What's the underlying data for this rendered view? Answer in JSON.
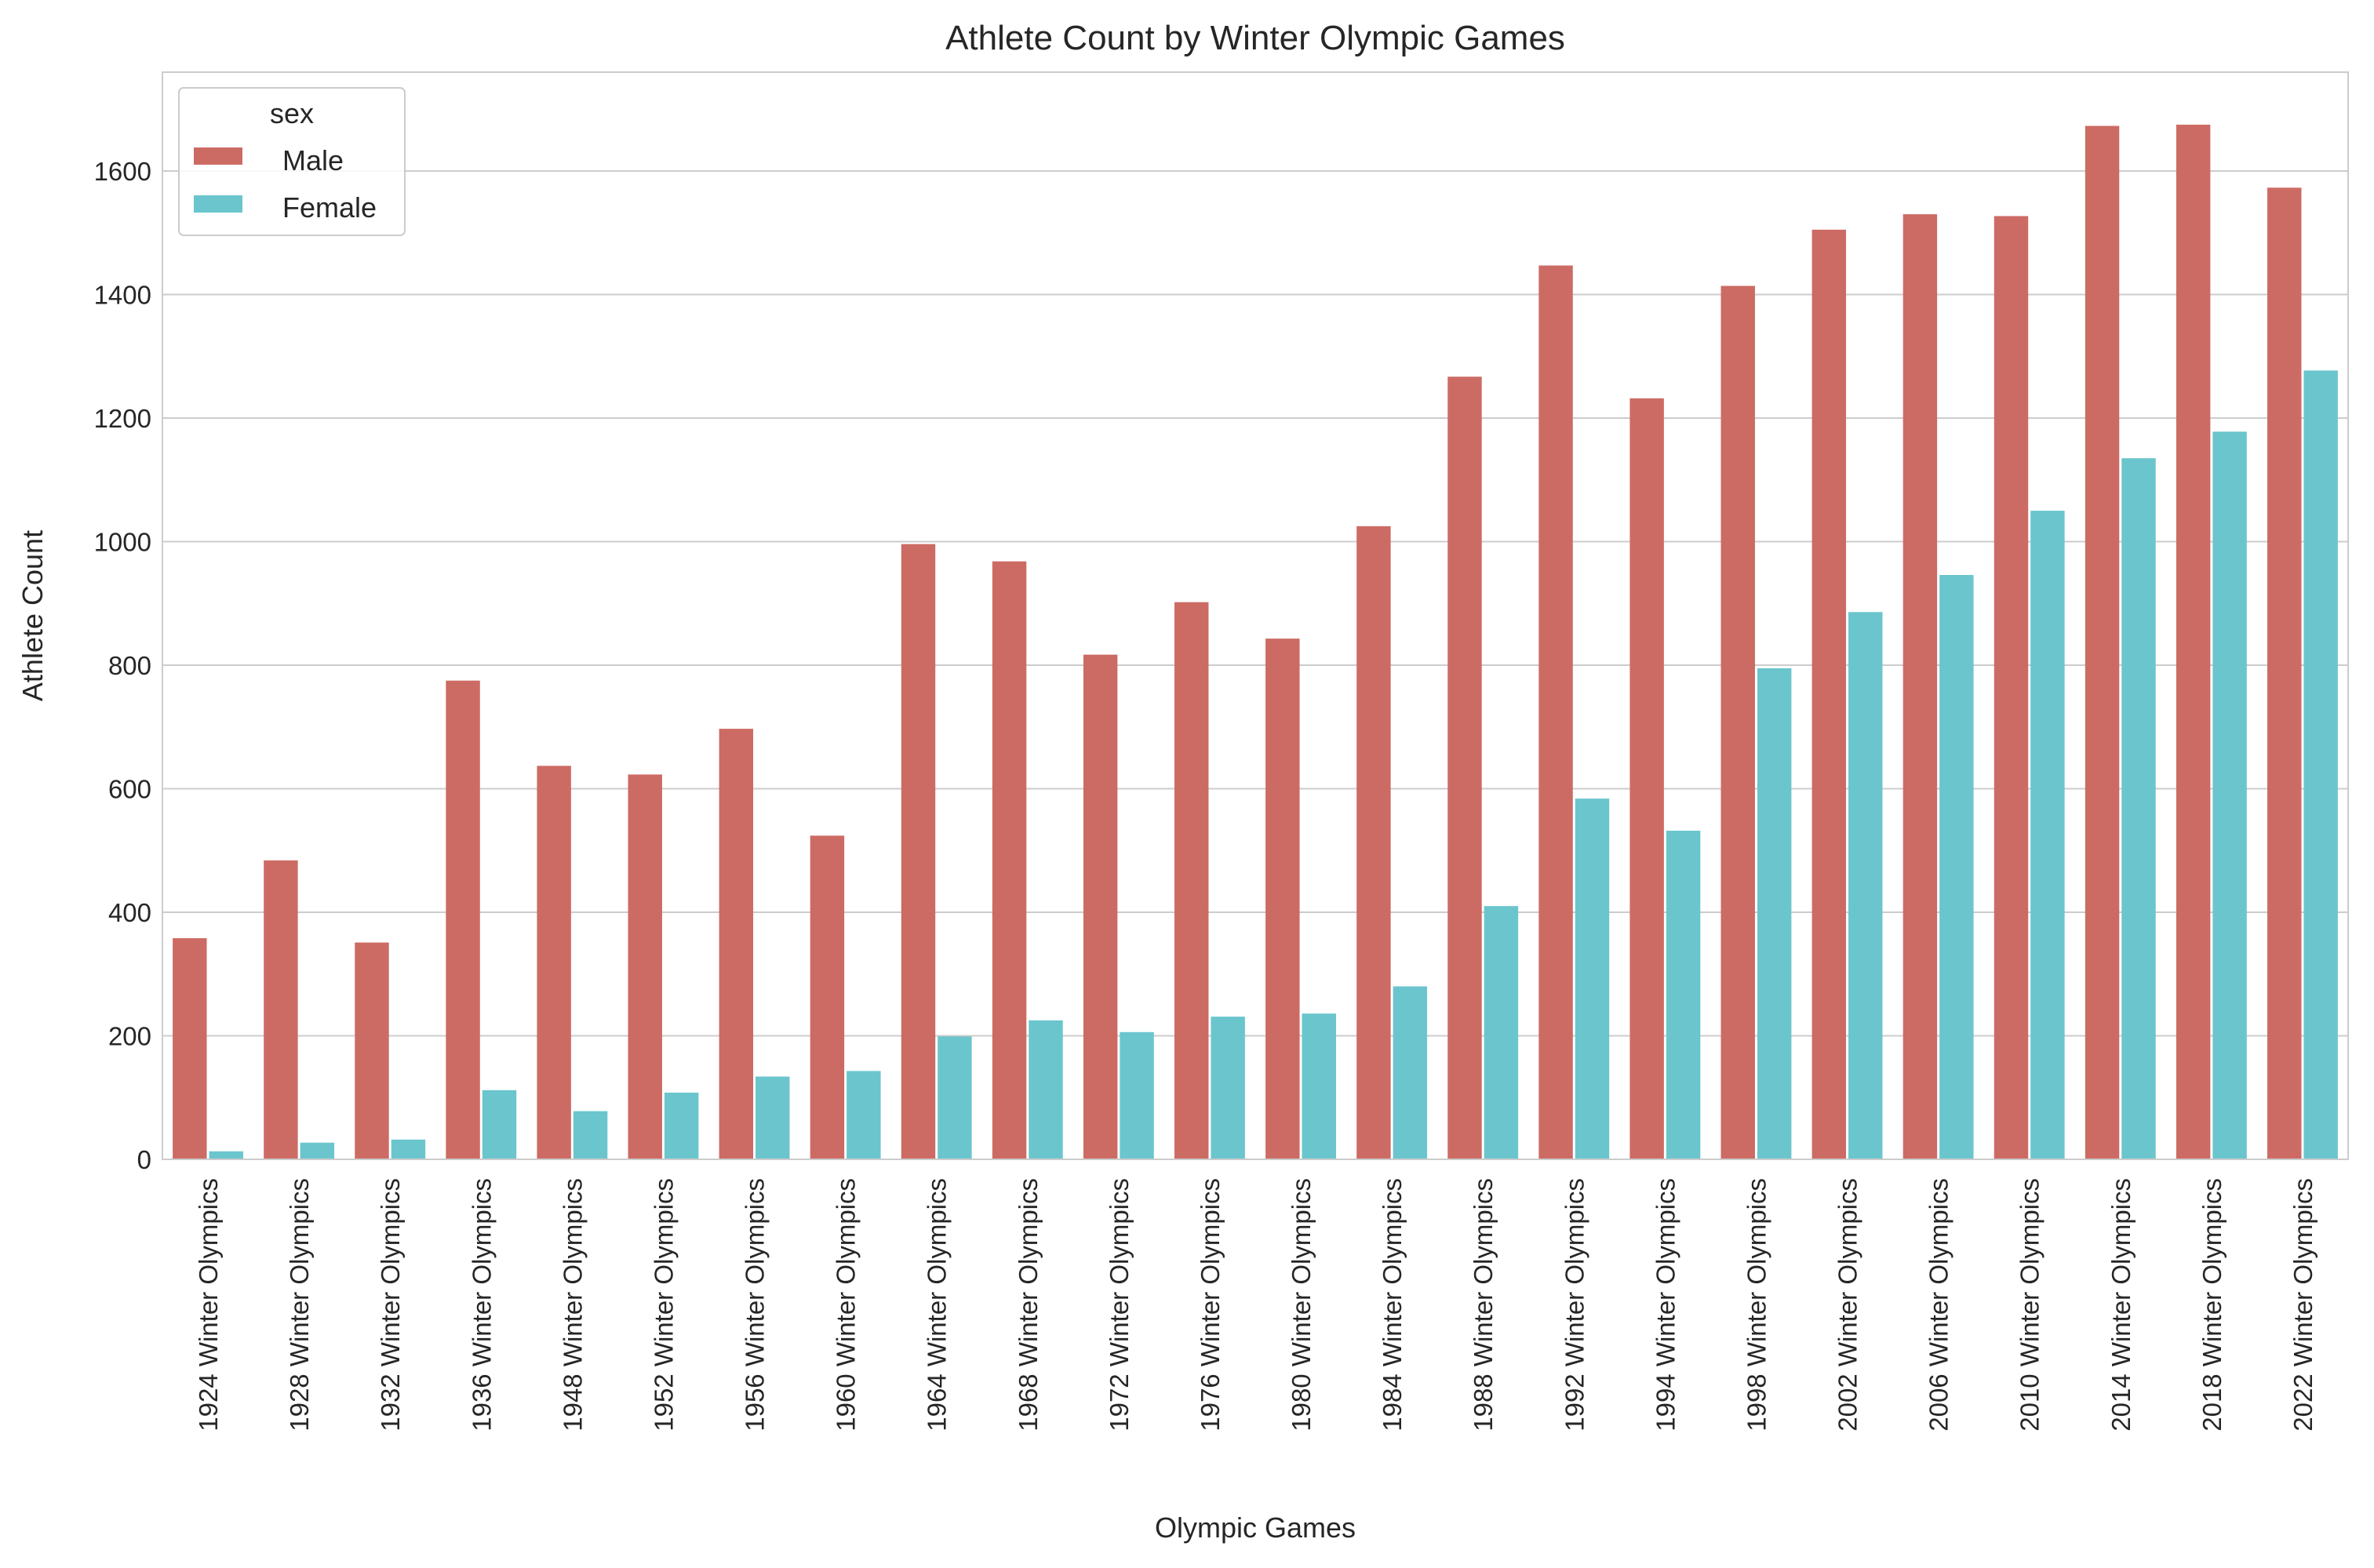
{
  "chart_data": {
    "type": "bar",
    "title": "Athlete Count by Winter Olympic Games",
    "xlabel": "Olympic Games",
    "ylabel": "Athlete Count",
    "ylim": [
      0,
      1760
    ],
    "yticks": [
      0,
      200,
      400,
      600,
      800,
      1000,
      1200,
      1400,
      1600
    ],
    "grid": "horizontal",
    "legend": {
      "title": "sex",
      "placement": "top-left"
    },
    "categories": [
      "1924 Winter Olympics",
      "1928 Winter Olympics",
      "1932 Winter Olympics",
      "1936 Winter Olympics",
      "1948 Winter Olympics",
      "1952 Winter Olympics",
      "1956 Winter Olympics",
      "1960 Winter Olympics",
      "1964 Winter Olympics",
      "1968 Winter Olympics",
      "1972 Winter Olympics",
      "1976 Winter Olympics",
      "1980 Winter Olympics",
      "1984 Winter Olympics",
      "1988 Winter Olympics",
      "1992 Winter Olympics",
      "1994 Winter Olympics",
      "1998 Winter Olympics",
      "2002 Winter Olympics",
      "2006 Winter Olympics",
      "2010 Winter Olympics",
      "2014 Winter Olympics",
      "2018 Winter Olympics",
      "2022 Winter Olympics"
    ],
    "series": [
      {
        "name": "Male",
        "color": "#cc6b64",
        "values": [
          358,
          484,
          351,
          775,
          637,
          623,
          697,
          524,
          996,
          968,
          817,
          902,
          843,
          1025,
          1267,
          1447,
          1232,
          1414,
          1505,
          1530,
          1527,
          1673,
          1675,
          1573
        ]
      },
      {
        "name": "Female",
        "color": "#6bc5cd",
        "values": [
          13,
          27,
          32,
          112,
          78,
          108,
          134,
          143,
          199,
          225,
          206,
          231,
          236,
          280,
          410,
          584,
          532,
          795,
          886,
          946,
          1050,
          1135,
          1178,
          1277
        ]
      }
    ]
  }
}
